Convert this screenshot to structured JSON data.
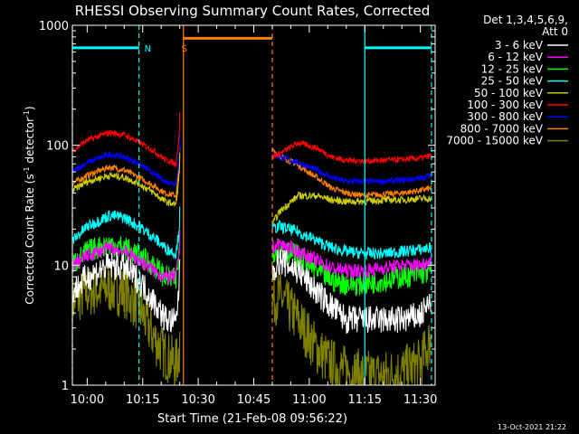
{
  "chart_data": {
    "type": "line",
    "title": "RHESSI Observing Summary Count Rates, Corrected",
    "xlabel": "Start Time (21-Feb-08 09:56:22)",
    "ylabel_parts": [
      "Corrected Count Rate (s",
      "-1",
      " detector",
      "-1",
      ")"
    ],
    "y_scale": "log",
    "ylim": [
      1,
      1000
    ],
    "x_range_minutes": [
      "09:56",
      "11:34"
    ],
    "x_ticks": [
      "10:00",
      "10:15",
      "10:30",
      "10:45",
      "11:00",
      "11:15",
      "11:30"
    ],
    "y_ticks": [
      "1",
      "10",
      "100",
      "1000"
    ],
    "legend_header": [
      "Det 1,3,4,5,6,9,",
      "Att 0"
    ],
    "annotations": [
      {
        "text": "N",
        "color": "#00ffff",
        "x": "10:14"
      },
      {
        "text": "S",
        "color": "#ff8000",
        "x": "10:24"
      }
    ],
    "bars": [
      {
        "name": "night",
        "color": "#00ffff",
        "y": 650,
        "from": "09:56",
        "to": "10:14"
      },
      {
        "name": "saa",
        "color": "#ff8000",
        "y": 780,
        "from": "10:26",
        "to": "10:50"
      },
      {
        "name": "night2",
        "color": "#00ffff",
        "y": 650,
        "from": "11:15",
        "to": "11:33"
      }
    ],
    "vlines": [
      {
        "x": "09:56",
        "color": "#00ffff",
        "style": "dash"
      },
      {
        "x": "10:14",
        "color": "#00ffff",
        "style": "dash"
      },
      {
        "x": "10:26",
        "color": "#ff8000",
        "style": "solid"
      },
      {
        "x": "10:50",
        "color": "#ff8000",
        "style": "dash"
      },
      {
        "x": "11:15",
        "color": "#00ffff",
        "style": "solid"
      },
      {
        "x": "11:33",
        "color": "#00ffff",
        "style": "dash"
      }
    ],
    "gap": [
      "10:26",
      "10:50"
    ],
    "series": [
      {
        "name": "3 - 6 keV",
        "color": "#ffffff",
        "noise": 0.12,
        "seg1": {
          "x": [
            "09:56",
            "10:00",
            "10:06",
            "10:10",
            "10:14",
            "10:18",
            "10:21",
            "10:24",
            "10:25"
          ],
          "y": [
            6,
            8,
            10,
            9.5,
            7.5,
            5,
            3.6,
            3.3,
            8
          ]
        },
        "seg2": {
          "x": [
            "10:50",
            "10:52",
            "10:57",
            "11:02",
            "11:06",
            "11:10",
            "11:15",
            "11:20",
            "11:25",
            "11:30",
            "11:33"
          ],
          "y": [
            9,
            11,
            9,
            6,
            4.5,
            3.5,
            3.5,
            3.5,
            3.5,
            3.8,
            5
          ]
        }
      },
      {
        "name": "6 - 12 keV",
        "color": "#ff00ff",
        "noise": 0.06,
        "seg1": {
          "x": [
            "09:56",
            "10:00",
            "10:06",
            "10:10",
            "10:14",
            "10:18",
            "10:21",
            "10:24",
            "10:25"
          ],
          "y": [
            10,
            12,
            14,
            13,
            11,
            9,
            8,
            8,
            14
          ]
        },
        "seg2": {
          "x": [
            "10:50",
            "10:52",
            "10:57",
            "11:02",
            "11:06",
            "11:10",
            "11:15",
            "11:20",
            "11:25",
            "11:30",
            "11:33"
          ],
          "y": [
            14,
            15,
            13,
            11,
            9.5,
            9,
            9,
            9.5,
            10,
            10,
            11
          ]
        }
      },
      {
        "name": "12 - 25 keV",
        "color": "#00ff00",
        "noise": 0.1,
        "seg1": {
          "x": [
            "09:56",
            "10:00",
            "10:06",
            "10:10",
            "10:14",
            "10:18",
            "10:21",
            "10:24",
            "10:25"
          ],
          "y": [
            10,
            13,
            15,
            14,
            12,
            10,
            8,
            7.5,
            14
          ]
        },
        "seg2": {
          "x": [
            "10:50",
            "10:52",
            "10:57",
            "11:02",
            "11:06",
            "11:10",
            "11:15",
            "11:20",
            "11:25",
            "11:30",
            "11:33"
          ],
          "y": [
            13,
            14,
            12,
            9,
            7.5,
            7,
            7,
            7.5,
            8,
            8.5,
            9
          ]
        }
      },
      {
        "name": "25 - 50 keV",
        "color": "#00ffff",
        "noise": 0.05,
        "seg1": {
          "x": [
            "09:56",
            "10:00",
            "10:06",
            "10:10",
            "10:14",
            "10:18",
            "10:21",
            "10:24",
            "10:25"
          ],
          "y": [
            16,
            21,
            26,
            25,
            21,
            17,
            14,
            12.5,
            22
          ]
        },
        "seg2": {
          "x": [
            "10:50",
            "10:52",
            "10:57",
            "11:02",
            "11:06",
            "11:10",
            "11:15",
            "11:20",
            "11:25",
            "11:30",
            "11:33"
          ],
          "y": [
            20,
            21,
            19,
            16,
            14,
            13,
            12.5,
            12.5,
            13,
            13.5,
            14
          ]
        }
      },
      {
        "name": "50 - 100 keV",
        "color": "#cccc00",
        "noise": 0.03,
        "seg1": {
          "x": [
            "09:56",
            "10:00",
            "10:06",
            "10:10",
            "10:14",
            "10:18",
            "10:21",
            "10:24",
            "10:25"
          ],
          "y": [
            42,
            50,
            56,
            54,
            48,
            40,
            34,
            32,
            62
          ]
        },
        "seg2": {
          "x": [
            "10:50",
            "10:52",
            "10:57",
            "11:02",
            "11:06",
            "11:10",
            "11:15",
            "11:20",
            "11:25",
            "11:30",
            "11:33"
          ],
          "y": [
            22,
            28,
            38,
            38,
            35,
            34,
            34,
            35,
            35,
            36,
            36
          ]
        }
      },
      {
        "name": "100 - 300 keV",
        "color": "#ff0000",
        "noise": 0.025,
        "seg1": {
          "x": [
            "09:56",
            "10:00",
            "10:06",
            "10:10",
            "10:14",
            "10:18",
            "10:21",
            "10:24",
            "10:25"
          ],
          "y": [
            90,
            110,
            128,
            122,
            106,
            90,
            76,
            70,
            135
          ]
        },
        "seg2": {
          "x": [
            "10:50",
            "10:52",
            "10:57",
            "11:02",
            "11:06",
            "11:10",
            "11:15",
            "11:20",
            "11:25",
            "11:30",
            "11:33"
          ],
          "y": [
            80,
            85,
            105,
            95,
            80,
            75,
            74,
            75,
            76,
            78,
            82
          ]
        }
      },
      {
        "name": "300 - 800 keV",
        "color": "#0000ff",
        "noise": 0.025,
        "seg1": {
          "x": [
            "09:56",
            "10:00",
            "10:06",
            "10:10",
            "10:14",
            "10:18",
            "10:21",
            "10:24",
            "10:25"
          ],
          "y": [
            60,
            72,
            84,
            80,
            70,
            58,
            50,
            48,
            88
          ]
        },
        "seg2": {
          "x": [
            "10:50",
            "10:52",
            "10:57",
            "11:02",
            "11:06",
            "11:10",
            "11:15",
            "11:20",
            "11:25",
            "11:30",
            "11:33"
          ],
          "y": [
            85,
            80,
            72,
            62,
            54,
            50,
            50,
            50,
            51,
            53,
            56
          ]
        }
      },
      {
        "name": "800 - 7000 keV",
        "color": "#ff8000",
        "noise": 0.025,
        "seg1": {
          "x": [
            "09:56",
            "10:00",
            "10:06",
            "10:10",
            "10:14",
            "10:18",
            "10:21",
            "10:24",
            "10:25"
          ],
          "y": [
            48,
            56,
            66,
            62,
            54,
            46,
            40,
            38,
            70
          ]
        },
        "seg2": {
          "x": [
            "10:50",
            "10:52",
            "10:57",
            "11:02",
            "11:06",
            "11:10",
            "11:15",
            "11:20",
            "11:25",
            "11:30",
            "11:33"
          ],
          "y": [
            90,
            82,
            68,
            54,
            44,
            40,
            38,
            39,
            40,
            42,
            44
          ]
        }
      },
      {
        "name": "7000 - 15000 keV",
        "color": "#808000",
        "noise": 0.22,
        "seg1": {
          "x": [
            "09:56",
            "10:00",
            "10:06",
            "10:10",
            "10:14",
            "10:18",
            "10:21",
            "10:24",
            "10:25"
          ],
          "y": [
            5,
            6,
            6.5,
            6,
            4.5,
            2.5,
            1.8,
            1.5,
            2
          ]
        },
        "seg2": {
          "x": [
            "10:50",
            "10:52",
            "10:57",
            "11:02",
            "11:06",
            "11:10",
            "11:15",
            "11:20",
            "11:25",
            "11:30",
            "11:33"
          ],
          "y": [
            5,
            5.5,
            3.5,
            2,
            1.5,
            1.3,
            1.2,
            1.2,
            1.3,
            1.5,
            2.5
          ]
        }
      }
    ]
  },
  "footer": {
    "timestamp": "13-Oct-2021 21:22"
  }
}
